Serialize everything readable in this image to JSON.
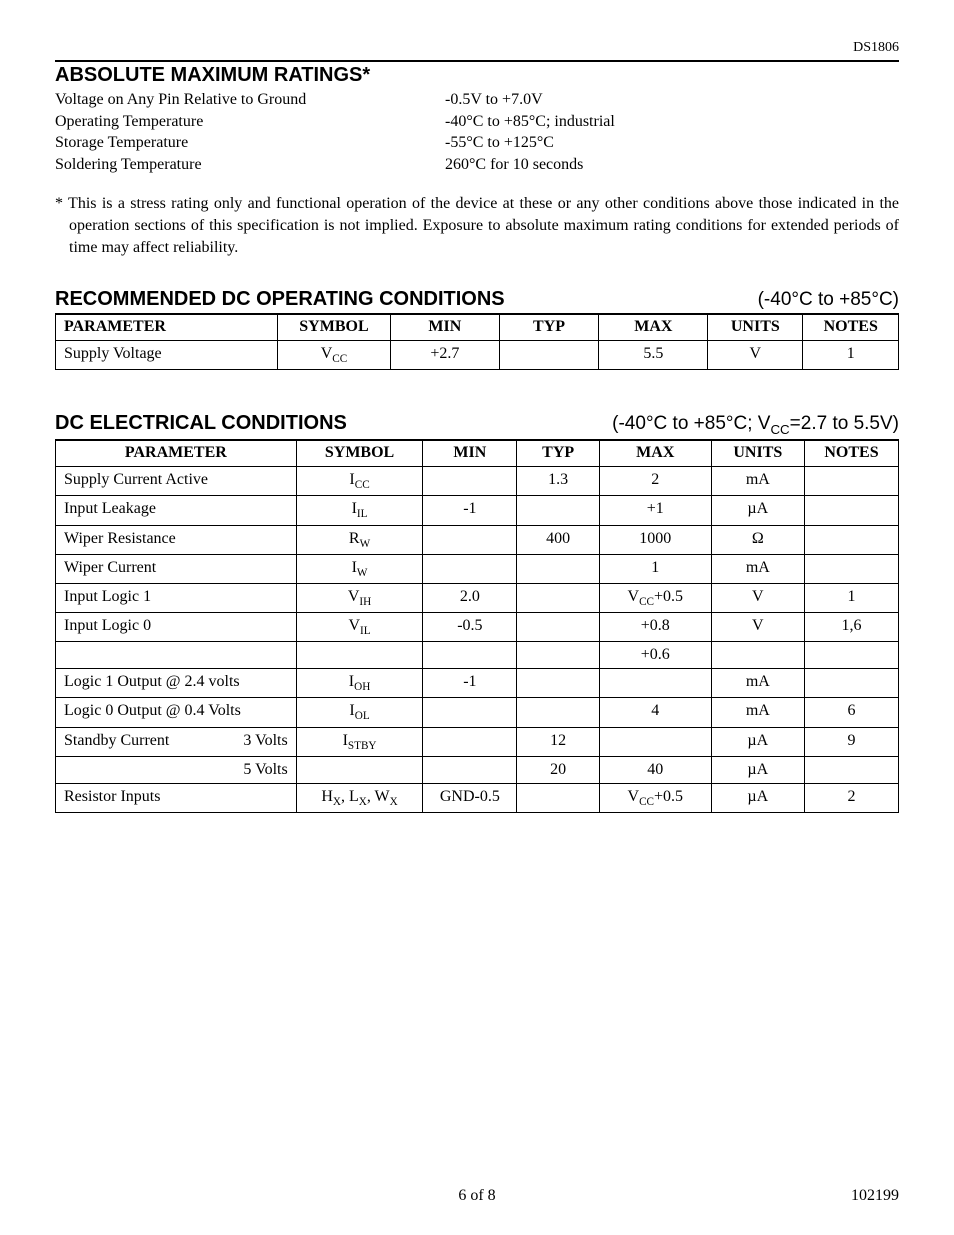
{
  "doc_id": "DS1806",
  "abs": {
    "heading": "ABSOLUTE MAXIMUM RATINGS*",
    "rows": [
      {
        "label": "Voltage on Any Pin Relative to Ground",
        "value": "-0.5V to +7.0V"
      },
      {
        "label": "Operating Temperature",
        "value": "-40°C to +85°C; industrial"
      },
      {
        "label": "Storage Temperature",
        "value": "-55°C to +125°C"
      },
      {
        "label": "Soldering Temperature",
        "value": "260°C for 10 seconds"
      }
    ],
    "footnote": "* This is a stress rating only and functional operation of the device at these or any other conditions above those indicated in the operation sections of this specification is not implied. Exposure to absolute maximum rating conditions for extended periods of time may affect reliability."
  },
  "rec": {
    "heading": "RECOMMENDED DC OPERATING CONDITIONS",
    "cond": "(-40°C to +85°C)",
    "headers": [
      "PARAMETER",
      "SYMBOL",
      "MIN",
      "TYP",
      "MAX",
      "UNITS",
      "NOTES"
    ],
    "row": {
      "param": "Supply Voltage",
      "symbol_html": "V<span class=\"sub\">CC</span>",
      "min": "+2.7",
      "typ": "",
      "max": "5.5",
      "units": "V",
      "notes": "1"
    }
  },
  "dc": {
    "heading": "DC ELECTRICAL CONDITIONS",
    "cond_html": "(-40°C to +85°C; V<span class=\"sub\">CC</span>=2.7 to 5.5V)",
    "headers": [
      "PARAMETER",
      "SYMBOL",
      "MIN",
      "TYP",
      "MAX",
      "UNITS",
      "NOTES"
    ],
    "rows": [
      {
        "param": "Supply Current Active",
        "symbol_html": "I<span class=\"sub\">CC</span>",
        "min": "",
        "typ": "1.3",
        "max": "2",
        "units": "mA",
        "notes": ""
      },
      {
        "param": "Input Leakage",
        "symbol_html": "I<span class=\"sub\">IL</span>",
        "min": "-1",
        "typ": "",
        "max": "+1",
        "units": "µA",
        "notes": ""
      },
      {
        "param": "Wiper Resistance",
        "symbol_html": "R<span class=\"sub\">W</span>",
        "min": "",
        "typ": "400",
        "max": "1000",
        "units": "Ω",
        "notes": ""
      },
      {
        "param": "Wiper Current",
        "symbol_html": "I<span class=\"sub\">W</span>",
        "min": "",
        "typ": "",
        "max": "1",
        "units": "mA",
        "notes": ""
      },
      {
        "param": "Input Logic 1",
        "symbol_html": "V<span class=\"sub\">IH</span>",
        "min": "2.0",
        "typ": "",
        "max": "V<span class=\"sub\">CC</span>+0.5",
        "units": "V",
        "notes": "1"
      },
      {
        "param": "Input Logic 0",
        "symbol_html": "V<span class=\"sub\">IL</span>",
        "min": "-0.5",
        "typ": "",
        "max": "+0.8",
        "units": "V",
        "notes": "1,6",
        "continuation": {
          "max": "+0.6"
        }
      },
      {
        "param": "Logic 1 Output @ 2.4 volts",
        "symbol_html": "I<span class=\"sub\">OH</span>",
        "min": "-1",
        "typ": "",
        "max": "",
        "units": "mA",
        "notes": ""
      },
      {
        "param": "Logic 0 Output @ 0.4 Volts",
        "symbol_html": "I<span class=\"sub\">OL</span>",
        "min": "",
        "typ": "",
        "max": "4",
        "units": "mA",
        "notes": "6"
      },
      {
        "param_html": "<span class=\"stdby-row\"><span>Standby Current</span><span>3 Volts</span></span>",
        "symbol_html": "I<span class=\"sub\">STBY</span>",
        "min": "",
        "typ": "12",
        "max": "",
        "units": "µA",
        "notes": "9",
        "continuation": {
          "param_html": "<span style=\"display:block;text-align:right\">5 Volts</span>",
          "typ": "20",
          "max": "40",
          "units": "µA"
        }
      },
      {
        "param": "Resistor Inputs",
        "symbol_html": "H<span class=\"sub\">X</span>, L<span class=\"sub\">X</span>, W<span class=\"sub\">X</span>",
        "min": "GND-0.5",
        "typ": "",
        "max": "V<span class=\"sub\">CC</span>+0.5",
        "units": "µA",
        "notes": "2"
      }
    ]
  },
  "footer": {
    "page": "6 of 8",
    "code": "102199"
  }
}
